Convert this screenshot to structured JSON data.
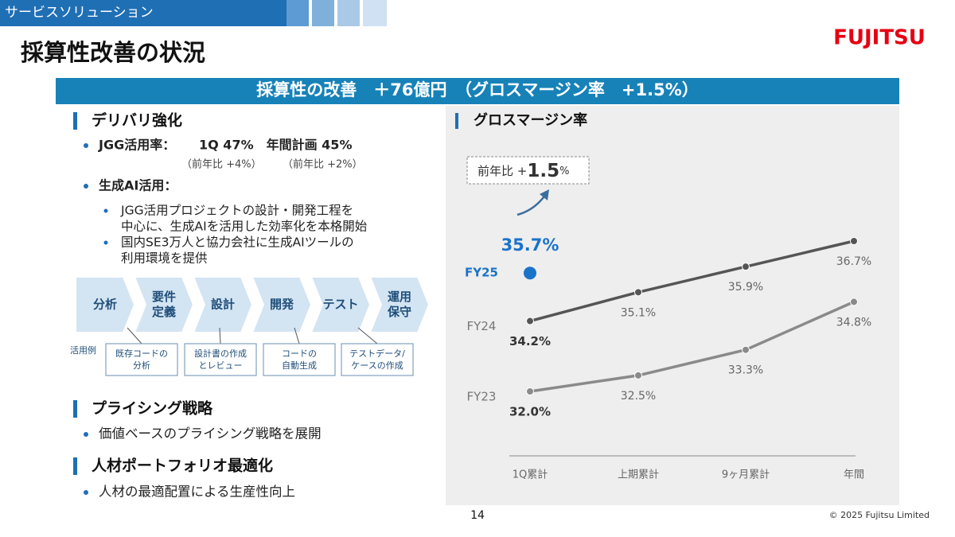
{
  "header": {
    "section": "サービスソリューション",
    "title": "採算性改善の状況",
    "logo": "FUJITSU"
  },
  "banner": "採算性の改善　＋76億円　（グロスマージン率　+1.5%）",
  "delivery": {
    "heading": "デリバリ強化",
    "jgg": {
      "label": "JGG活用率：",
      "value": "1Q 47%　年間計画 45%",
      "notes": [
        "（前年比 +4%）",
        "（前年比 +2%）"
      ]
    },
    "genai": {
      "label": "生成AI活用：",
      "items": [
        [
          "JGG活用プロジェクトの設計・開発工程を",
          "中心に、生成AIを活用した効率化を本格開始"
        ],
        [
          "国内SE3万人と協力会社に生成AIツールの",
          "利用環境を提供"
        ]
      ]
    }
  },
  "process": {
    "steps": [
      [
        "分析"
      ],
      [
        "要件",
        "定義"
      ],
      [
        "設計"
      ],
      [
        "開発"
      ],
      [
        "テスト"
      ],
      [
        "運用",
        "保守"
      ]
    ],
    "example_label": "活用例",
    "examples": [
      [
        "既存コードの",
        "分析"
      ],
      [
        "設計書の作成",
        "とレビュー"
      ],
      [
        "コードの",
        "自動生成"
      ],
      [
        "テストデータ/",
        "ケースの作成"
      ]
    ]
  },
  "pricing": {
    "heading": "プライシング戦略",
    "items": [
      "価値ベースのプライシング戦略を展開"
    ]
  },
  "talent": {
    "heading": "人材ポートフォリオ最適化",
    "items": [
      "人材の最適配置による生産性向上"
    ]
  },
  "chart_data": {
    "type": "line",
    "title": "グロスマージン率",
    "categories": [
      "1Q累計",
      "上期累計",
      "9ヶ月累計",
      "年間"
    ],
    "annotation": {
      "prefix": "前年比 +",
      "value": "1.5",
      "suffix": "%"
    },
    "series": [
      {
        "name": "FY25",
        "color": "#1a73c8",
        "values": [
          35.7,
          null,
          null,
          null
        ],
        "value_labels": [
          "35.7%",
          null,
          null,
          null
        ]
      },
      {
        "name": "FY24",
        "color": "#555555",
        "values": [
          34.2,
          35.1,
          35.9,
          36.7
        ],
        "value_labels": [
          "34.2%",
          "35.1%",
          "35.9%",
          "36.7%"
        ]
      },
      {
        "name": "FY23",
        "color": "#8a8a8a",
        "values": [
          32.0,
          32.5,
          33.3,
          34.8
        ],
        "value_labels": [
          "32.0%",
          "32.5%",
          "33.3%",
          "34.8%"
        ]
      }
    ]
  },
  "footer": {
    "page": "14",
    "copyright": "© 2025 Fujitsu Limited"
  }
}
